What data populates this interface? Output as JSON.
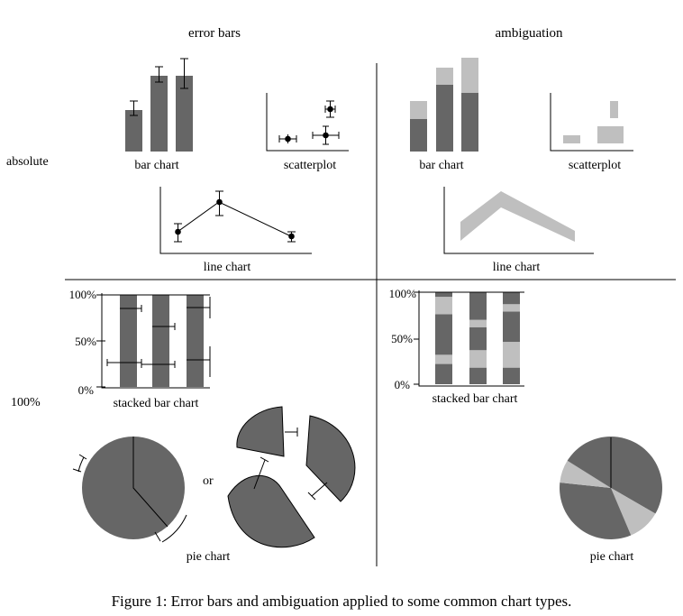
{
  "figure": {
    "headers": {
      "left": "error bars",
      "right": "ambiguation"
    },
    "rows": {
      "top": "absolute",
      "bottom": "100%"
    },
    "labels": {
      "bar_chart": "bar chart",
      "scatterplot": "scatterplot",
      "line_chart": "line chart",
      "stacked_bar_chart": "stacked bar chart",
      "pie_chart": "pie chart",
      "or": "or"
    },
    "ticks": {
      "t100": "100%",
      "t50": "50%",
      "t0": "0%"
    },
    "caption": "Figure 1: Error bars and ambiguation applied to some common chart types.",
    "colors": {
      "dark": "#666666",
      "light": "#bfbfbf",
      "axis": "#000000"
    }
  },
  "chart_data": [
    {
      "panel": "error bars / bar chart",
      "type": "bar",
      "values": [
        47,
        84,
        84
      ],
      "error": [
        [
          41,
          58
        ],
        [
          77,
          95
        ],
        [
          72,
          104
        ]
      ]
    },
    {
      "panel": "error bars / scatterplot",
      "type": "scatter",
      "points": [
        {
          "x": 1.0,
          "y": 1.0,
          "xerr": [
            0.6,
            1.4
          ],
          "yerr": [
            0.8,
            1.2
          ]
        },
        {
          "x": 3.1,
          "y": 1.4,
          "xerr": [
            2.6,
            3.8
          ],
          "yerr": [
            0.6,
            2.2
          ]
        },
        {
          "x": 3.2,
          "y": 3.8,
          "xerr": [
            3.0,
            3.5
          ],
          "yerr": [
            3.1,
            4.5
          ]
        }
      ]
    },
    {
      "panel": "error bars / line chart",
      "type": "line",
      "x": [
        1,
        2,
        3
      ],
      "y": [
        36,
        66,
        33
      ],
      "error": [
        [
          28,
          47
        ],
        [
          54,
          77
        ],
        [
          29,
          38
        ]
      ]
    },
    {
      "panel": "ambiguation / bar chart",
      "type": "bar",
      "lower": [
        35,
        73,
        64
      ],
      "upper": [
        55,
        93,
        102
      ]
    },
    {
      "panel": "ambiguation / scatterplot",
      "type": "scatter",
      "ranges": [
        {
          "x": [
            0.6,
            1.4
          ],
          "y": [
            0.8,
            1.4
          ]
        },
        {
          "x": [
            2.6,
            3.8
          ],
          "y": [
            0.8,
            2.2
          ]
        },
        {
          "x": [
            3.0,
            3.5
          ],
          "y": [
            3.1,
            4.5
          ]
        }
      ]
    },
    {
      "panel": "ambiguation / line chart",
      "type": "area",
      "x": [
        1,
        2,
        3
      ],
      "lower": [
        15,
        53,
        12
      ],
      "upper": [
        38,
        78,
        22
      ]
    },
    {
      "panel": "error bars / stacked bar chart",
      "type": "bar",
      "ylim": [
        0,
        100
      ],
      "boundaries": [
        [
          28,
          84
        ],
        [
          26,
          68
        ],
        [
          31,
          85
        ]
      ],
      "error": [
        [
          [
            14,
            40
          ],
          [
            71,
            97
          ]
        ],
        [
          [
            10,
            42
          ],
          [
            59,
            85
          ]
        ],
        [
          [
            17,
            45
          ],
          [
            45,
            100
          ]
        ]
      ]
    },
    {
      "panel": "ambiguation / stacked bar chart",
      "type": "bar",
      "ylim": [
        0,
        100
      ],
      "segments": [
        [
          [
            0,
            22,
            "dark"
          ],
          [
            22,
            32,
            "light"
          ],
          [
            32,
            76,
            "dark"
          ],
          [
            76,
            95,
            "light"
          ],
          [
            95,
            100,
            "dark"
          ]
        ],
        [
          [
            0,
            18,
            "dark"
          ],
          [
            18,
            37,
            "light"
          ],
          [
            37,
            62,
            "dark"
          ],
          [
            62,
            70,
            "light"
          ],
          [
            70,
            100,
            "dark"
          ]
        ],
        [
          [
            0,
            18,
            "dark"
          ],
          [
            18,
            46,
            "light"
          ],
          [
            46,
            79,
            "dark"
          ],
          [
            79,
            87,
            "light"
          ],
          [
            87,
            100,
            "dark"
          ]
        ]
      ]
    },
    {
      "panel": "error bars / pie chart",
      "type": "pie",
      "slice_boundaries_deg": [
        0,
        133,
        240
      ],
      "error_deg": [
        [
          121,
          153
        ],
        [
          231,
          251
        ]
      ]
    },
    {
      "panel": "error bars / exploded pie chart",
      "type": "pie",
      "slice_boundaries_deg": [
        0,
        133,
        240
      ]
    },
    {
      "panel": "ambiguation / pie chart",
      "type": "pie",
      "slices": [
        [
          0,
          120,
          "dark"
        ],
        [
          120,
          157,
          "light"
        ],
        [
          157,
          276,
          "dark"
        ],
        [
          276,
          302,
          "light"
        ],
        [
          302,
          360,
          "dark"
        ]
      ]
    }
  ]
}
